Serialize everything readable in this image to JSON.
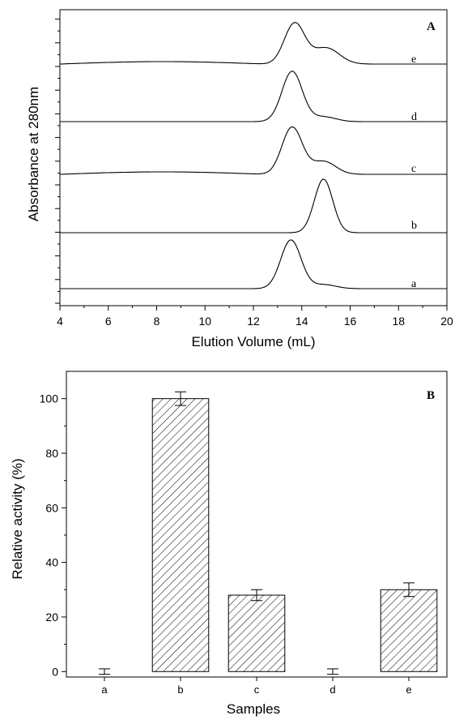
{
  "chart_data": [
    {
      "type": "line",
      "panel_label": "A",
      "xlabel": "Elution Volume (mL)",
      "ylabel": "Absorbance at 280nm",
      "xlim": [
        4,
        20
      ],
      "x_ticks": [
        "4",
        "6",
        "8",
        "10",
        "12",
        "14",
        "16",
        "18",
        "20"
      ],
      "y_tick_labels": "none",
      "grid": false,
      "series": [
        {
          "name": "a",
          "baseline_offset": 0,
          "peaks": [
            {
              "center": 13.55,
              "height": 60,
              "width": 0.42
            },
            {
              "center": 14.9,
              "height": 5,
              "width": 0.5
            }
          ],
          "ripple": 0
        },
        {
          "name": "b",
          "baseline_offset": 1.0,
          "peaks": [
            {
              "center": 14.9,
              "height": 66,
              "width": 0.38
            }
          ],
          "ripple": 0
        },
        {
          "name": "c",
          "baseline_offset": 2.0,
          "peaks": [
            {
              "center": 13.6,
              "height": 58,
              "width": 0.42
            },
            {
              "center": 14.9,
              "height": 16,
              "width": 0.5
            }
          ],
          "ripple": 3
        },
        {
          "name": "d",
          "baseline_offset": 3.0,
          "peaks": [
            {
              "center": 13.6,
              "height": 62,
              "width": 0.42
            },
            {
              "center": 14.9,
              "height": 6,
              "width": 0.5
            }
          ],
          "ripple": 0
        },
        {
          "name": "e",
          "baseline_offset": 4.0,
          "peaks": [
            {
              "center": 13.7,
              "height": 50,
              "width": 0.42
            },
            {
              "center": 15.0,
              "height": 20,
              "width": 0.55
            }
          ],
          "ripple": 3
        }
      ]
    },
    {
      "type": "bar",
      "panel_label": "B",
      "xlabel": "Samples",
      "ylabel": "Relative activity (%)",
      "categories": [
        "a",
        "b",
        "c",
        "d",
        "e"
      ],
      "values": [
        0,
        100,
        28,
        0,
        30
      ],
      "errors": [
        1,
        2.5,
        2,
        1,
        2.5
      ],
      "ylim": [
        -2,
        110
      ],
      "y_ticks": [
        0,
        20,
        40,
        60,
        80,
        100
      ],
      "bar_pattern": "diagonal-hatch",
      "grid": false
    }
  ]
}
